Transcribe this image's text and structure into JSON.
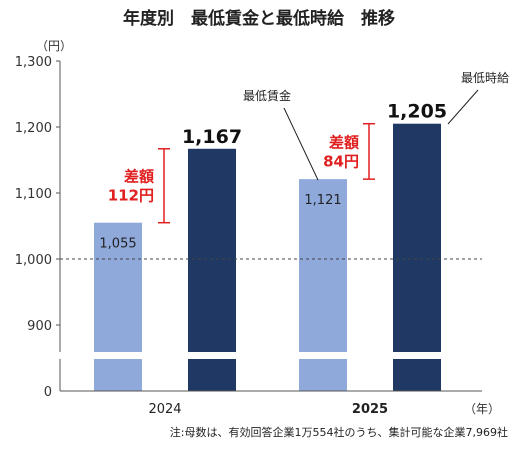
{
  "chart_data": {
    "type": "bar",
    "title": "年度別　最低賃金と最低時給　推移",
    "unit_label": "（円）",
    "x_unit_label": "（年）",
    "categories": [
      "2024",
      "2025"
    ],
    "series": [
      {
        "name": "最低賃金",
        "color": "#8fa9db",
        "values": [
          1055,
          1121
        ]
      },
      {
        "name": "最低時給",
        "color": "#1f3864",
        "values": [
          1167,
          1205
        ]
      }
    ],
    "value_labels": {
      "最低賃金": [
        "1,055",
        "1,121"
      ],
      "最低時給": [
        "1,167",
        "1,205"
      ]
    },
    "ylim": [
      900,
      1300
    ],
    "axis_break_value": 0,
    "yticks": [
      900,
      1000,
      1100,
      1200,
      1300
    ],
    "ytick_labels": [
      "900",
      "1,000",
      "1,100",
      "1,200",
      "1,300"
    ],
    "reference_line": 1000,
    "differences": [
      {
        "category": "2024",
        "line1": "差額",
        "line2": "112円"
      },
      {
        "category": "2025",
        "line1": "差額",
        "line2": "84円"
      }
    ],
    "grid": false,
    "note": "注:母数は、有効回答企業1万554社のうち、集計可能な企業7,969社",
    "accent_color": "#e02020"
  }
}
